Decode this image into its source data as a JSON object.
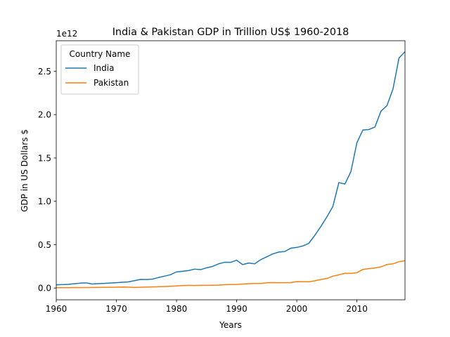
{
  "chart_data": {
    "type": "line",
    "title": "India & Pakistan GDP in Trillion US$ 1960-2018",
    "xlabel": "Years",
    "ylabel": "GDP in US Dollars $",
    "y_offset_text": "1e12",
    "xlim": [
      1960,
      2018
    ],
    "ylim": [
      -0.1358,
      2.8522
    ],
    "x_ticks": [
      1960,
      1970,
      1980,
      1990,
      2000,
      2010
    ],
    "y_ticks": [
      0.0,
      0.5,
      1.0,
      1.5,
      2.0,
      2.5
    ],
    "y_tick_labels": [
      "0.0",
      "0.5",
      "1.0",
      "1.5",
      "2.0",
      "2.5"
    ],
    "y_unit": "1e12 US$",
    "grid": false,
    "legend": {
      "title": "Country Name",
      "placement": "top-left"
    },
    "x": [
      1960,
      1961,
      1962,
      1963,
      1964,
      1965,
      1966,
      1967,
      1968,
      1969,
      1970,
      1971,
      1972,
      1973,
      1974,
      1975,
      1976,
      1977,
      1978,
      1979,
      1980,
      1981,
      1982,
      1983,
      1984,
      1985,
      1986,
      1987,
      1988,
      1989,
      1990,
      1991,
      1992,
      1993,
      1994,
      1995,
      1996,
      1997,
      1998,
      1999,
      2000,
      2001,
      2002,
      2003,
      2004,
      2005,
      2006,
      2007,
      2008,
      2009,
      2010,
      2011,
      2012,
      2013,
      2014,
      2015,
      2016,
      2017,
      2018
    ],
    "series": [
      {
        "name": "India",
        "color": "#1f77b4",
        "values": [
          0.037,
          0.039,
          0.042,
          0.049,
          0.056,
          0.059,
          0.046,
          0.05,
          0.053,
          0.058,
          0.062,
          0.067,
          0.071,
          0.085,
          0.099,
          0.098,
          0.103,
          0.121,
          0.137,
          0.153,
          0.186,
          0.193,
          0.201,
          0.218,
          0.212,
          0.233,
          0.249,
          0.279,
          0.297,
          0.296,
          0.321,
          0.27,
          0.288,
          0.279,
          0.327,
          0.36,
          0.393,
          0.415,
          0.421,
          0.459,
          0.468,
          0.485,
          0.515,
          0.608,
          0.709,
          0.82,
          0.94,
          1.216,
          1.199,
          1.342,
          1.676,
          1.823,
          1.828,
          1.857,
          2.039,
          2.104,
          2.295,
          2.653,
          2.726
        ]
      },
      {
        "name": "Pakistan",
        "color": "#ff7f0e",
        "values": [
          0.004,
          0.004,
          0.004,
          0.005,
          0.005,
          0.006,
          0.006,
          0.007,
          0.008,
          0.008,
          0.01,
          0.011,
          0.01,
          0.006,
          0.009,
          0.011,
          0.013,
          0.015,
          0.017,
          0.02,
          0.024,
          0.028,
          0.031,
          0.029,
          0.031,
          0.031,
          0.032,
          0.033,
          0.038,
          0.04,
          0.04,
          0.046,
          0.049,
          0.052,
          0.052,
          0.061,
          0.063,
          0.062,
          0.062,
          0.063,
          0.074,
          0.073,
          0.072,
          0.083,
          0.098,
          0.11,
          0.137,
          0.152,
          0.17,
          0.168,
          0.177,
          0.214,
          0.224,
          0.231,
          0.244,
          0.271,
          0.279,
          0.304,
          0.315
        ]
      }
    ]
  }
}
